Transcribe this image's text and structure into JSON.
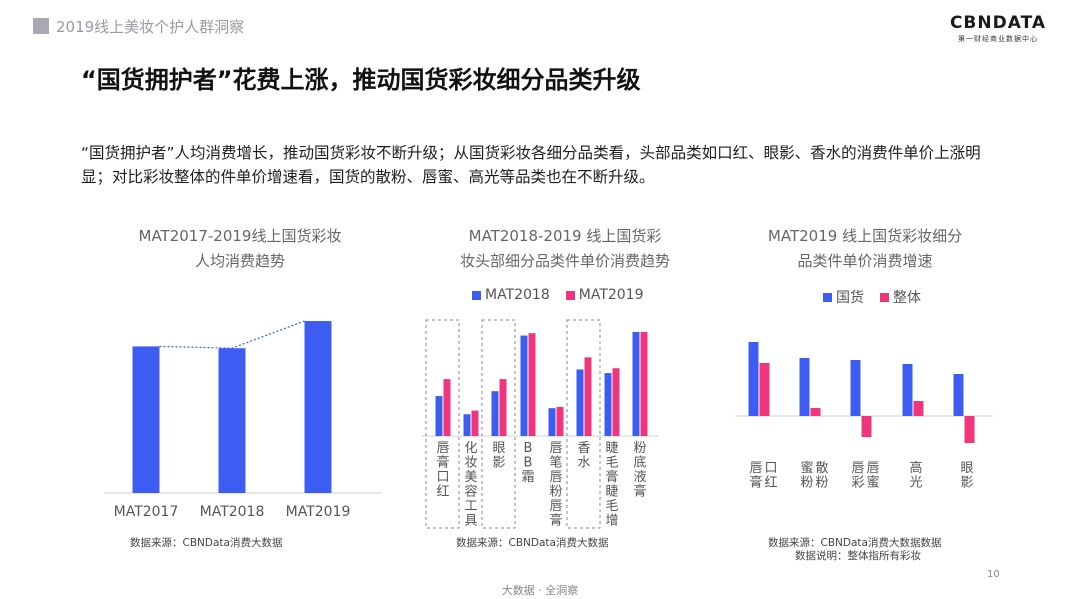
{
  "header": {
    "section": "2019线上美妆个护人群洞察"
  },
  "logo": {
    "name": "CBNDATA",
    "sub": "第一财经商业数据中心"
  },
  "title": "“国货拥护者”花费上涨，推动国货彩妆细分品类升级",
  "description": "“国货拥护者”人均消费增长，推动国货彩妆不断升级；从国货彩妆各细分品类看，头部品类如口红、眼影、香水的消费件单价上涨明显；对比彩妆整体的件单价增速看，国货的散粉、唇蜜、高光等品类也在不断升级。",
  "colors": {
    "blue": "#3d5cf2",
    "pink": "#f0357c",
    "axis": "#cfcfcf",
    "dash": "#888888"
  },
  "chart1": {
    "title_line1": "MAT2017-2019线上国货彩妆",
    "title_line2": "人均消费趋势",
    "source": "数据来源：CBNData消费大数据"
  },
  "chart2": {
    "title_line1": "MAT2018-2019 线上国货彩",
    "title_line2": "妆头部细分品类件单价消费趋势",
    "legend": [
      "MAT2018",
      "MAT2019"
    ],
    "source": "数据来源：CBNData消费大数据"
  },
  "chart3": {
    "title_line1": "MAT2019 线上国货彩妆细分",
    "title_line2": "品类件单价消费增速",
    "legend": [
      "国货",
      "整体"
    ],
    "source_line1": "数据来源：CBNData消费大数据数据",
    "source_line2": "数据说明：整体指所有彩妆"
  },
  "chart_data": [
    {
      "type": "bar",
      "categories": [
        "MAT2017",
        "MAT2018",
        "MAT2019"
      ],
      "values": [
        0.81,
        0.8,
        0.95
      ],
      "trendline": true,
      "ylim": [
        0,
        1
      ],
      "axis": "unlabeled"
    },
    {
      "type": "bar",
      "categories": [
        "唇膏口红",
        "化妆美容工具",
        "眼影",
        "BB霜",
        "唇笔唇粉唇膏",
        "香水",
        "睫毛膏睫毛增",
        "粉底液膏"
      ],
      "series": [
        {
          "name": "MAT2018",
          "values": [
            0.33,
            0.18,
            0.37,
            0.83,
            0.23,
            0.55,
            0.52,
            0.86
          ]
        },
        {
          "name": "MAT2019",
          "values": [
            0.47,
            0.21,
            0.47,
            0.85,
            0.24,
            0.65,
            0.56,
            0.86
          ]
        }
      ],
      "highlighted": [
        "唇膏口红",
        "眼影",
        "香水"
      ],
      "ylim": [
        0,
        1
      ],
      "axis": "unlabeled"
    },
    {
      "type": "bar",
      "categories": [
        "唇膏口红",
        "蜜粉散粉",
        "唇彩唇蜜",
        "高光",
        "眼影"
      ],
      "series": [
        {
          "name": "国货",
          "values": [
            0.74,
            0.58,
            0.56,
            0.52,
            0.42
          ]
        },
        {
          "name": "整体",
          "values": [
            0.53,
            0.08,
            -0.21,
            0.15,
            -0.27
          ]
        }
      ],
      "ylim": [
        -0.35,
        0.85
      ],
      "axis": "unlabeled"
    }
  ],
  "page_number": "10",
  "footer": "大数据 · 全洞察"
}
